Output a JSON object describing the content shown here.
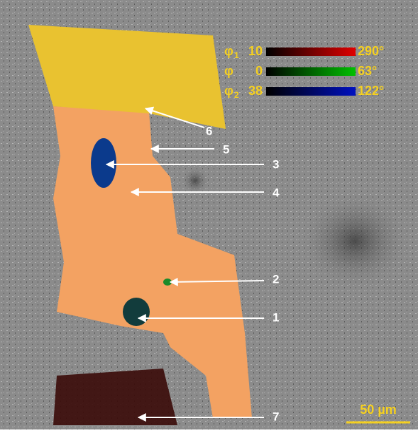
{
  "legend": [
    {
      "symbol": "φ",
      "sub": "1",
      "min": "10",
      "max": "290°"
    },
    {
      "symbol": "φ",
      "min": "0",
      "max": "63°"
    },
    {
      "symbol": "φ",
      "sub": "2",
      "min": "38",
      "max": "122°"
    }
  ],
  "labels": [
    "1",
    "2",
    "3",
    "4",
    "5",
    "6",
    "7"
  ],
  "scale_bar": "50 µm"
}
